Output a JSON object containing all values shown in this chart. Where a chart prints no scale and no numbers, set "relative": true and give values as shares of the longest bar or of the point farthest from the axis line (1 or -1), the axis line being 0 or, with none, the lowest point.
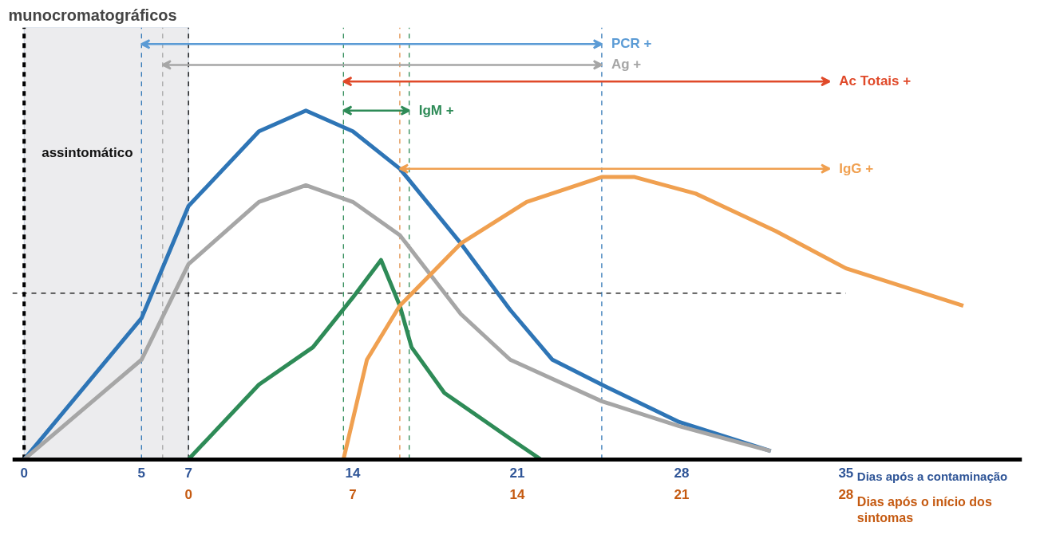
{
  "chart_data": {
    "type": "line",
    "relative": true,
    "title": "munocromatográficos",
    "xlabel": "Dias após a contaminação",
    "x2label": "Dias após o início dos sintomas",
    "xlim": [
      -0.5,
      42.5
    ],
    "xticks": [
      0,
      5,
      7,
      14,
      21,
      28,
      35
    ],
    "x2lim": [
      -7.5,
      35.5
    ],
    "x2ticks": [
      0,
      7,
      14,
      21,
      28
    ],
    "grid": false,
    "line_style": "solid",
    "series": [
      {
        "color": "#2e75b6",
        "x": [
          0,
          5,
          7,
          10,
          12,
          14,
          16,
          18.6,
          20.7,
          22.5,
          24.6,
          27.9,
          31.8
        ],
        "values": [
          0,
          0.34,
          0.61,
          0.79,
          0.84,
          0.79,
          0.7,
          0.52,
          0.36,
          0.24,
          0.18,
          0.09,
          0.02
        ]
      },
      {
        "color": "#a6a6a6",
        "x": [
          0,
          5,
          7,
          10,
          12,
          14,
          16,
          18.6,
          20.7,
          24.6,
          27.9,
          31.8
        ],
        "values": [
          0,
          0.24,
          0.47,
          0.62,
          0.66,
          0.62,
          0.54,
          0.35,
          0.24,
          0.14,
          0.08,
          0.02
        ]
      },
      {
        "color": "#2e8b57",
        "x": [
          7,
          10,
          12.3,
          14,
          15.2,
          16,
          16.5,
          17.9,
          20.7,
          22
        ],
        "values": [
          0,
          0.18,
          0.27,
          0.39,
          0.48,
          0.37,
          0.27,
          0.16,
          0.05,
          0
        ]
      },
      {
        "color": "#f0a050",
        "x": [
          13.6,
          14.6,
          16,
          18.6,
          21.4,
          24.6,
          26,
          28.6,
          32,
          35,
          40
        ],
        "values": [
          0,
          0.24,
          0.37,
          0.52,
          0.62,
          0.68,
          0.68,
          0.64,
          0.55,
          0.46,
          0.37
        ]
      },
      {
        "name": "PCR +",
        "marker": "diamond",
        "color": "#5b9bd5",
        "x": [
          5,
          24.6
        ],
        "values": [
          1.0,
          1.0
        ]
      },
      {
        "name": "Ag +",
        "marker": "diamond",
        "color": "#a6a6a6",
        "x": [
          5.9,
          24.6
        ],
        "values": [
          0.95,
          0.95
        ]
      },
      {
        "name": "Ac Totais +",
        "marker": "diamond",
        "color": "#e04a2a",
        "x": [
          13.6,
          34.3
        ],
        "values": [
          0.91,
          0.91
        ]
      },
      {
        "name": "IgM +",
        "marker": "diamond",
        "color": "#2e8b57",
        "x": [
          13.6,
          16.4
        ],
        "values": [
          0.84,
          0.84
        ]
      },
      {
        "name": "IgG +",
        "marker": "diamond",
        "color": "#f0a050",
        "x": [
          16,
          34.3
        ],
        "values": [
          0.7,
          0.7
        ]
      }
    ],
    "ref_lines": [
      {
        "axis": "x",
        "value": 0,
        "color": "#000000",
        "line_style": "dashed"
      },
      {
        "axis": "x",
        "value": 5,
        "color": "#2e75b6",
        "line_style": "dashed"
      },
      {
        "axis": "x",
        "value": 5.9,
        "color": "#a6a6a6",
        "line_style": "dashed"
      },
      {
        "axis": "x",
        "value": 7,
        "color": "#000000",
        "line_style": "dashed"
      },
      {
        "axis": "x",
        "value": 13.6,
        "color": "#2e8b57",
        "line_style": "dashed"
      },
      {
        "axis": "x",
        "value": 16,
        "color": "#e0904a",
        "line_style": "dashed"
      },
      {
        "axis": "x",
        "value": 16.4,
        "color": "#2e8b57",
        "line_style": "dashed"
      },
      {
        "axis": "x",
        "value": 24.6,
        "color": "#2e75b6",
        "line_style": "dashed"
      },
      {
        "axis": "y",
        "value": 0.4,
        "color": "#000000",
        "line_style": "dashed"
      }
    ],
    "bands": [
      {
        "axis": "x",
        "from": 0,
        "to": 7,
        "label": "assintomático",
        "color": "#ececee"
      }
    ]
  }
}
